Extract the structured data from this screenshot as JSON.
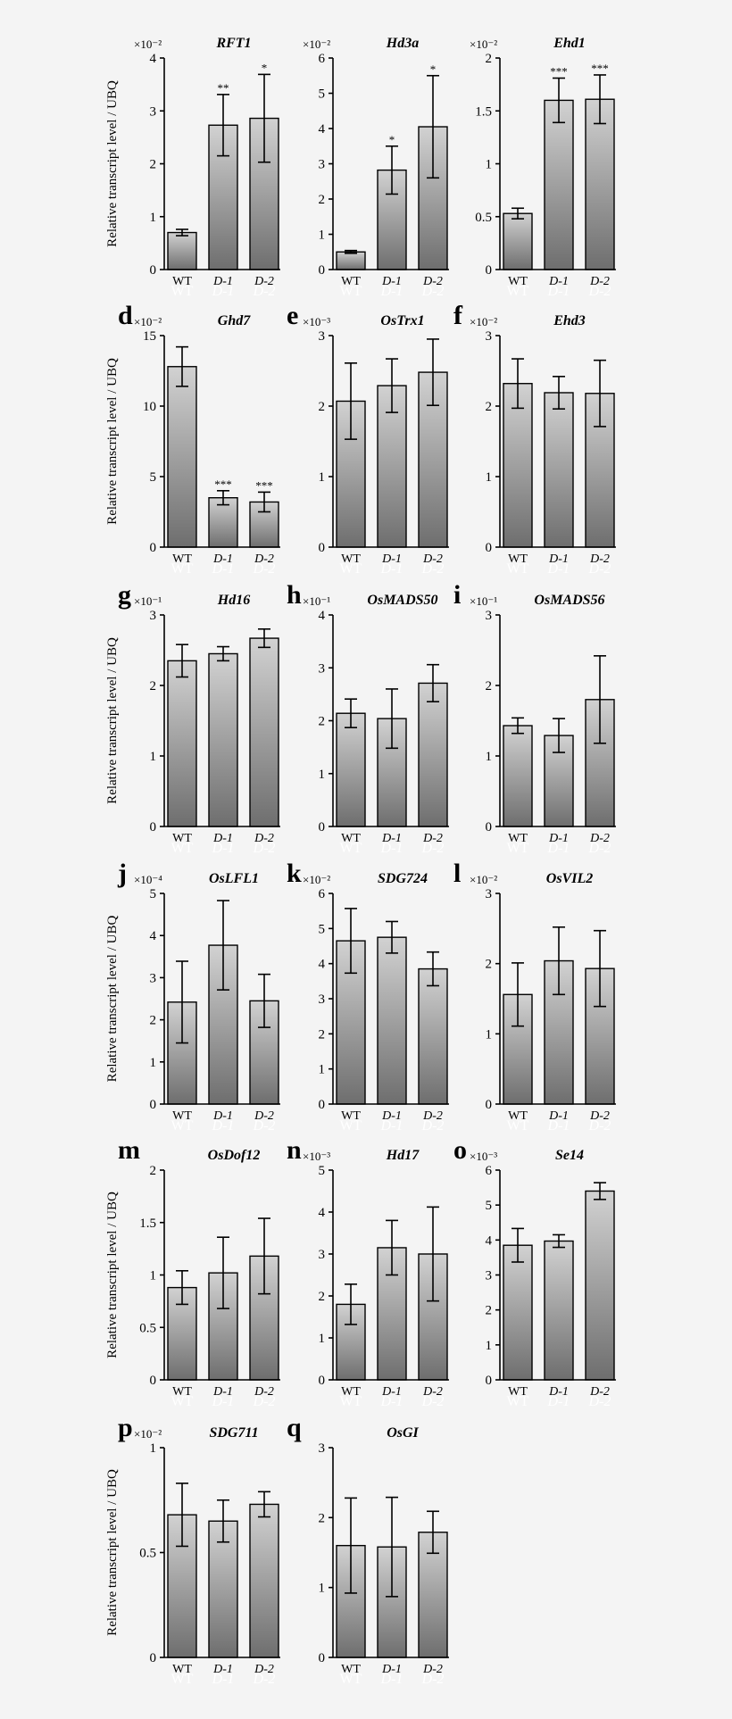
{
  "figure": {
    "y_axis_label": "Relative transcript level / UBQ"
  },
  "chart_data": [
    {
      "type": "bar",
      "panel": "",
      "title": "RFT1",
      "exponent": "×10⁻²",
      "ylim": [
        0,
        4
      ],
      "yticks": [
        "0",
        "1",
        "2",
        "3",
        "4"
      ],
      "categories": [
        "WT",
        "D-1",
        "D-2"
      ],
      "values": [
        0.7,
        2.73,
        2.86
      ],
      "errors": [
        0.06,
        0.58,
        0.83
      ],
      "significance": [
        "",
        "**",
        "*"
      ]
    },
    {
      "type": "bar",
      "panel": "",
      "title": "Hd3a",
      "exponent": "×10⁻²",
      "ylim": [
        0,
        6
      ],
      "yticks": [
        "0",
        "1",
        "2",
        "3",
        "4",
        "5",
        "6"
      ],
      "categories": [
        "WT",
        "D-1",
        "D-2"
      ],
      "values": [
        0.5,
        2.82,
        4.05
      ],
      "errors": [
        0.04,
        0.68,
        1.45
      ],
      "significance": [
        "",
        "*",
        "*"
      ]
    },
    {
      "type": "bar",
      "panel": "",
      "title": "Ehd1",
      "exponent": "×10⁻²",
      "ylim": [
        0,
        2
      ],
      "yticks": [
        "0",
        "0.5",
        "1",
        "1.5",
        "2"
      ],
      "categories": [
        "WT",
        "D-1",
        "D-2"
      ],
      "values": [
        0.53,
        1.6,
        1.61
      ],
      "errors": [
        0.05,
        0.21,
        0.23
      ],
      "significance": [
        "",
        "***",
        "***"
      ]
    },
    {
      "type": "bar",
      "panel": "d",
      "title": "Ghd7",
      "exponent": "×10⁻²",
      "ylim": [
        0,
        15
      ],
      "yticks": [
        "0",
        "5",
        "10",
        "15"
      ],
      "categories": [
        "WT",
        "D-1",
        "D-2"
      ],
      "values": [
        12.8,
        3.5,
        3.2
      ],
      "errors": [
        1.4,
        0.5,
        0.7
      ],
      "significance": [
        "",
        "***",
        "***"
      ]
    },
    {
      "type": "bar",
      "panel": "e",
      "title": "OsTrx1",
      "exponent": "×10⁻³",
      "ylim": [
        0,
        3
      ],
      "yticks": [
        "0",
        "1",
        "2",
        "3"
      ],
      "categories": [
        "WT",
        "D-1",
        "D-2"
      ],
      "values": [
        2.07,
        2.29,
        2.48
      ],
      "errors": [
        0.54,
        0.38,
        0.47
      ],
      "significance": [
        "",
        "",
        ""
      ]
    },
    {
      "type": "bar",
      "panel": "f",
      "title": "Ehd3",
      "exponent": "×10⁻²",
      "ylim": [
        0,
        3
      ],
      "yticks": [
        "0",
        "1",
        "2",
        "3"
      ],
      "categories": [
        "WT",
        "D-1",
        "D-2"
      ],
      "values": [
        2.32,
        2.19,
        2.18
      ],
      "errors": [
        0.35,
        0.23,
        0.47
      ],
      "significance": [
        "",
        "",
        ""
      ]
    },
    {
      "type": "bar",
      "panel": "g",
      "title": "Hd16",
      "exponent": "×10⁻¹",
      "ylim": [
        0,
        3
      ],
      "yticks": [
        "0",
        "1",
        "2",
        "3"
      ],
      "categories": [
        "WT",
        "D-1",
        "D-2"
      ],
      "values": [
        2.35,
        2.45,
        2.67
      ],
      "errors": [
        0.23,
        0.1,
        0.13
      ],
      "significance": [
        "",
        "",
        ""
      ]
    },
    {
      "type": "bar",
      "panel": "h",
      "title": "OsMADS50",
      "exponent": "×10⁻¹",
      "ylim": [
        0,
        4
      ],
      "yticks": [
        "0",
        "1",
        "2",
        "3",
        "4"
      ],
      "categories": [
        "WT",
        "D-1",
        "D-2"
      ],
      "values": [
        2.14,
        2.04,
        2.71
      ],
      "errors": [
        0.27,
        0.56,
        0.35
      ],
      "significance": [
        "",
        "",
        ""
      ]
    },
    {
      "type": "bar",
      "panel": "i",
      "title": "OsMADS56",
      "exponent": "×10⁻¹",
      "ylim": [
        0,
        3
      ],
      "yticks": [
        "0",
        "1",
        "2",
        "3"
      ],
      "categories": [
        "WT",
        "D-1",
        "D-2"
      ],
      "values": [
        1.43,
        1.29,
        1.8
      ],
      "errors": [
        0.11,
        0.24,
        0.62
      ],
      "significance": [
        "",
        "",
        ""
      ]
    },
    {
      "type": "bar",
      "panel": "j",
      "title": "OsLFL1",
      "exponent": "×10⁻⁴",
      "ylim": [
        0,
        5
      ],
      "yticks": [
        "0",
        "1",
        "2",
        "3",
        "4",
        "5"
      ],
      "categories": [
        "WT",
        "D-1",
        "D-2"
      ],
      "values": [
        2.42,
        3.77,
        2.45
      ],
      "errors": [
        0.97,
        1.06,
        0.63
      ],
      "significance": [
        "",
        "",
        ""
      ]
    },
    {
      "type": "bar",
      "panel": "k",
      "title": "SDG724",
      "exponent": "×10⁻²",
      "ylim": [
        0,
        6
      ],
      "yticks": [
        "0",
        "1",
        "2",
        "3",
        "4",
        "5",
        "6"
      ],
      "categories": [
        "WT",
        "D-1",
        "D-2"
      ],
      "values": [
        4.65,
        4.75,
        3.85
      ],
      "errors": [
        0.92,
        0.45,
        0.48
      ],
      "significance": [
        "",
        "",
        ""
      ]
    },
    {
      "type": "bar",
      "panel": "l",
      "title": "OsVIL2",
      "exponent": "×10⁻²",
      "ylim": [
        0,
        3
      ],
      "yticks": [
        "0",
        "1",
        "2",
        "3"
      ],
      "categories": [
        "WT",
        "D-1",
        "D-2"
      ],
      "values": [
        1.56,
        2.04,
        1.93
      ],
      "errors": [
        0.45,
        0.48,
        0.54
      ],
      "significance": [
        "",
        "",
        ""
      ]
    },
    {
      "type": "bar",
      "panel": "m",
      "title": "OsDof12",
      "exponent": "",
      "ylim": [
        0,
        2
      ],
      "yticks": [
        "0",
        "0.5",
        "1",
        "1.5",
        "2"
      ],
      "categories": [
        "WT",
        "D-1",
        "D-2"
      ],
      "values": [
        0.88,
        1.02,
        1.18
      ],
      "errors": [
        0.16,
        0.34,
        0.36
      ],
      "significance": [
        "",
        "",
        ""
      ]
    },
    {
      "type": "bar",
      "panel": "n",
      "title": "Hd17",
      "exponent": "×10⁻³",
      "ylim": [
        0,
        5
      ],
      "yticks": [
        "0",
        "1",
        "2",
        "3",
        "4",
        "5"
      ],
      "categories": [
        "WT",
        "D-1",
        "D-2"
      ],
      "values": [
        1.8,
        3.15,
        3.0
      ],
      "errors": [
        0.48,
        0.65,
        1.12
      ],
      "significance": [
        "",
        "",
        ""
      ]
    },
    {
      "type": "bar",
      "panel": "o",
      "title": "Se14",
      "exponent": "×10⁻³",
      "ylim": [
        0,
        6
      ],
      "yticks": [
        "0",
        "1",
        "2",
        "3",
        "4",
        "5",
        "6"
      ],
      "categories": [
        "WT",
        "D-1",
        "D-2"
      ],
      "values": [
        3.85,
        3.97,
        5.4
      ],
      "errors": [
        0.48,
        0.18,
        0.24
      ],
      "significance": [
        "",
        "",
        ""
      ]
    },
    {
      "type": "bar",
      "panel": "p",
      "title": "SDG711",
      "exponent": "×10⁻²",
      "ylim": [
        0,
        1
      ],
      "yticks": [
        "0",
        "0.5",
        "1"
      ],
      "categories": [
        "WT",
        "D-1",
        "D-2"
      ],
      "values": [
        0.68,
        0.65,
        0.73
      ],
      "errors": [
        0.15,
        0.1,
        0.06
      ],
      "significance": [
        "",
        "",
        ""
      ]
    },
    {
      "type": "bar",
      "panel": "q",
      "title": "OsGI",
      "exponent": "",
      "ylim": [
        0,
        3
      ],
      "yticks": [
        "0",
        "1",
        "2",
        "3"
      ],
      "categories": [
        "WT",
        "D-1",
        "D-2"
      ],
      "values": [
        1.6,
        1.58,
        1.79
      ],
      "errors": [
        0.68,
        0.71,
        0.3
      ],
      "significance": [
        "",
        "",
        ""
      ]
    }
  ]
}
